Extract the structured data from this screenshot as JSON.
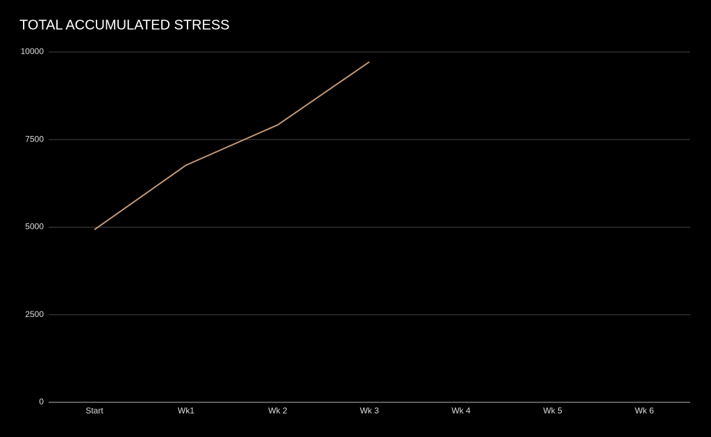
{
  "chart_data": {
    "type": "line",
    "title": "TOTAL ACCUMULATED STRESS",
    "categories": [
      "Start",
      "Wk1",
      "Wk 2",
      "Wk 3",
      "Wk 4",
      "Wk 5",
      "Wk 6"
    ],
    "series": [
      {
        "name": "Total accumulated stress",
        "color": "#c49a7a",
        "values": [
          4930,
          6770,
          7920,
          9720,
          null,
          null,
          null
        ]
      }
    ],
    "ylim": [
      0,
      10000
    ],
    "yticks": [
      0,
      2500,
      5000,
      7500,
      10000
    ],
    "grid": true,
    "legend": false
  }
}
